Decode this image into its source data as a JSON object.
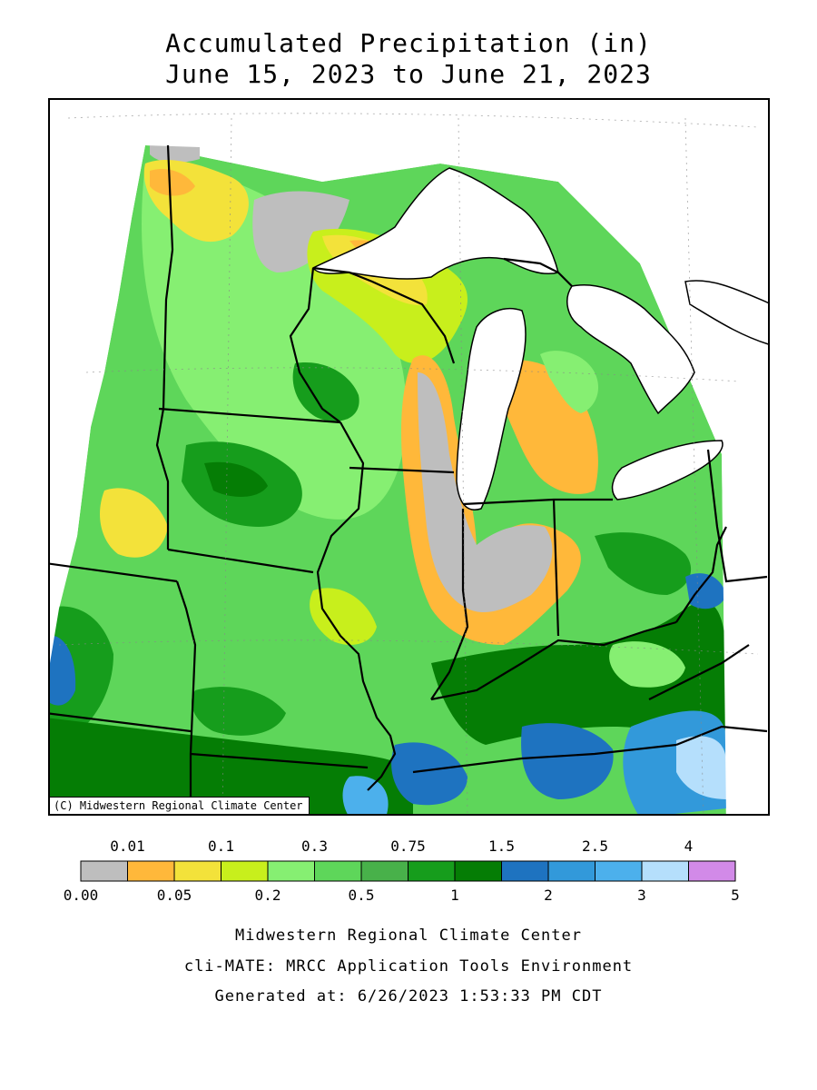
{
  "title": {
    "line1": "Accumulated Precipitation (in)",
    "line2": "June 15, 2023 to June 21, 2023"
  },
  "map": {
    "copyright": "(C) Midwestern Regional Climate Center",
    "region": "Midwest US",
    "colors": {
      "lake": "#ffffff",
      "border": "#000000"
    }
  },
  "legend": {
    "top_labels": [
      "0.01",
      "0.1",
      "0.3",
      "0.75",
      "1.5",
      "2.5",
      "4"
    ],
    "bottom_labels": [
      "0.00",
      "0.05",
      "0.2",
      "0.5",
      "1",
      "2",
      "3",
      "5"
    ],
    "bins": [
      {
        "color": "#bebebe"
      },
      {
        "color": "#ffb83a"
      },
      {
        "color": "#f3e23a"
      },
      {
        "color": "#c8ef1c"
      },
      {
        "color": "#86ef72"
      },
      {
        "color": "#5ed65a"
      },
      {
        "color": "#48b14a"
      },
      {
        "color": "#169d1c"
      },
      {
        "color": "#057d05"
      },
      {
        "color": "#1e73c0"
      },
      {
        "color": "#3299da"
      },
      {
        "color": "#4cb0ec"
      },
      {
        "color": "#b5dffc"
      },
      {
        "color": "#d28ae8"
      }
    ]
  },
  "footer": {
    "line1": "Midwestern Regional Climate Center",
    "line2": "cli-MATE: MRCC Application Tools Environment",
    "line3": "Generated at: 6/26/2023 1:53:33 PM CDT"
  }
}
